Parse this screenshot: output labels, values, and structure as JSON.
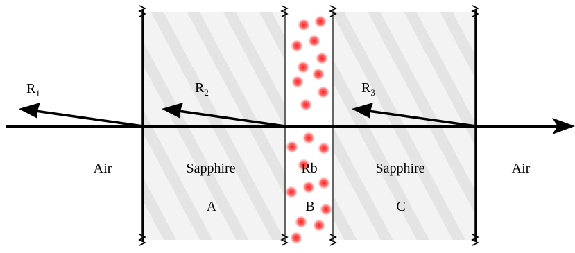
{
  "regions": {
    "air_left": {
      "label": "Air"
    },
    "sapphire_a": {
      "label": "Sapphire",
      "tag": "A"
    },
    "rb_cell": {
      "label": "Rb",
      "tag": "B"
    },
    "sapphire_c": {
      "label": "Sapphire",
      "tag": "C"
    },
    "air_right": {
      "label": "Air"
    }
  },
  "reflections": [
    {
      "name": "R",
      "index": "1"
    },
    {
      "name": "R",
      "index": "2"
    },
    {
      "name": "R",
      "index": "3"
    }
  ],
  "colors": {
    "line": "#000000",
    "sapphire_fill": "#efefef",
    "atom": "#ff2a2a"
  }
}
